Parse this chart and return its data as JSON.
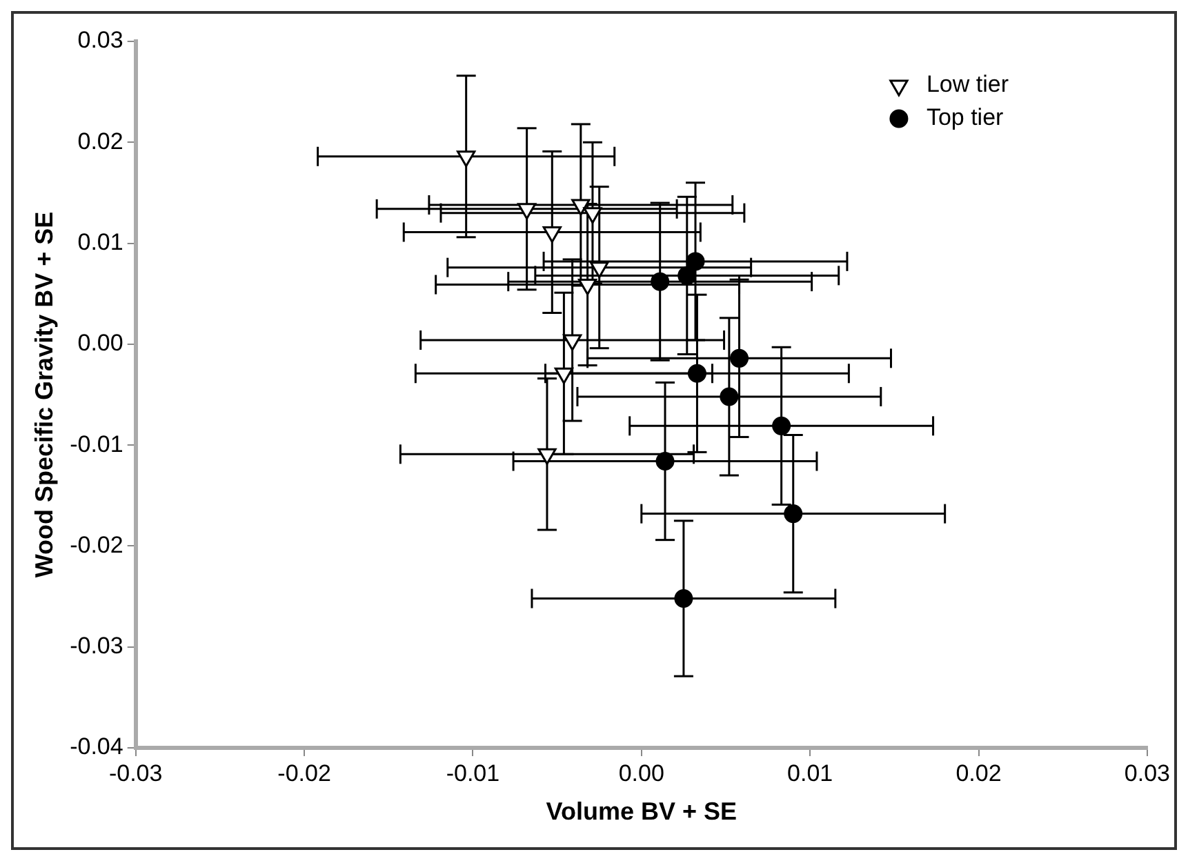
{
  "chart_data": {
    "type": "scatter",
    "xlabel": "Volume BV + SE",
    "ylabel": "Wood Specific Gravity BV + SE",
    "xlim": [
      -0.03,
      0.03
    ],
    "xticks": [
      {
        "value": -0.03,
        "label": "-0.03"
      },
      {
        "value": -0.02,
        "label": "-0.02"
      },
      {
        "value": -0.01,
        "label": "-0.01"
      },
      {
        "value": 0,
        "label": "0.00"
      },
      {
        "value": 0.01,
        "label": "0.01"
      },
      {
        "value": 0.02,
        "label": "0.02"
      },
      {
        "value": 0.03,
        "label": "0.03"
      }
    ],
    "ylim": [
      -0.04,
      0.03
    ],
    "yticks": [
      {
        "value": -0.04,
        "label": "-0.04"
      },
      {
        "value": -0.03,
        "label": "-0.03"
      },
      {
        "value": -0.02,
        "label": "-0.02"
      },
      {
        "value": -0.01,
        "label": "-0.01"
      },
      {
        "value": 0,
        "label": "0.00"
      },
      {
        "value": 0.01,
        "label": "0.01"
      },
      {
        "value": 0.02,
        "label": "0.02"
      },
      {
        "value": 0.03,
        "label": "0.03"
      }
    ],
    "grid": false,
    "legend": "top right",
    "series": [
      {
        "name": "Low tier",
        "color": "#000000",
        "marker": "triangle",
        "x": [
          -0.0104,
          -0.0068,
          -0.0036,
          -0.0029,
          -0.0053,
          -0.0025,
          -0.0032,
          -0.0041,
          -0.0046,
          -0.0056
        ],
        "values": [
          0.0186,
          0.0134,
          0.0138,
          0.013,
          0.0111,
          0.0076,
          0.0059,
          0.0004,
          -0.0029,
          -0.0109
        ],
        "errors": [
          0.008,
          0.008,
          0.008,
          0.007,
          0.008,
          0.008,
          0.008,
          0.008,
          0.008,
          0.0075
        ],
        "xerrors": [
          0.0088,
          0.0089,
          0.009,
          0.009,
          0.0088,
          0.009,
          0.009,
          0.009,
          0.0088,
          0.0087
        ]
      },
      {
        "name": "Top tier",
        "color": "#000000",
        "marker": "circle",
        "x": [
          0.0032,
          0.0011,
          0.0027,
          0.0058,
          0.0033,
          0.0052,
          0.0083,
          0.0014,
          0.009,
          0.0025
        ],
        "values": [
          0.0082,
          0.0062,
          0.0068,
          -0.0014,
          -0.0029,
          -0.0052,
          -0.0081,
          -0.0116,
          -0.0168,
          -0.0252
        ],
        "errors": [
          0.0078,
          0.0078,
          0.0078,
          0.0078,
          0.0078,
          0.0078,
          0.0078,
          0.0078,
          0.0078,
          0.0077
        ],
        "xerrors": [
          0.009,
          0.009,
          0.009,
          0.009,
          0.009,
          0.009,
          0.009,
          0.009,
          0.009,
          0.009
        ]
      }
    ]
  }
}
